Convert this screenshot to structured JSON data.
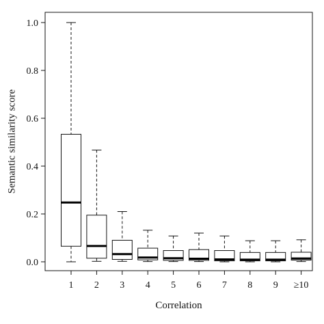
{
  "chart_data": {
    "type": "box",
    "title": "",
    "xlabel": "Correlation",
    "ylabel": "Semantic similarity score",
    "ylim": [
      0,
      1.0
    ],
    "yticks": [
      0.0,
      0.2,
      0.4,
      0.6,
      0.8,
      1.0
    ],
    "ytick_labels": [
      "0.0",
      "0.2",
      "0.4",
      "0.6",
      "0.8",
      "1.0"
    ],
    "grid": false,
    "categories": [
      "1",
      "2",
      "3",
      "4",
      "5",
      "6",
      "7",
      "8",
      "9",
      "≥10"
    ],
    "boxes": [
      {
        "category": "1",
        "whisker_low": 0.0,
        "q1": 0.065,
        "median": 0.248,
        "q3": 0.533,
        "whisker_high": 1.0
      },
      {
        "category": "2",
        "whisker_low": 0.002,
        "q1": 0.015,
        "median": 0.066,
        "q3": 0.195,
        "whisker_high": 0.467
      },
      {
        "category": "3",
        "whisker_low": 0.002,
        "q1": 0.01,
        "median": 0.032,
        "q3": 0.09,
        "whisker_high": 0.21
      },
      {
        "category": "4",
        "whisker_low": 0.001,
        "q1": 0.008,
        "median": 0.018,
        "q3": 0.057,
        "whisker_high": 0.132
      },
      {
        "category": "5",
        "whisker_low": 0.001,
        "q1": 0.006,
        "median": 0.015,
        "q3": 0.047,
        "whisker_high": 0.108
      },
      {
        "category": "6",
        "whisker_low": 0.001,
        "q1": 0.006,
        "median": 0.013,
        "q3": 0.051,
        "whisker_high": 0.12
      },
      {
        "category": "7",
        "whisker_low": 0.0,
        "q1": 0.004,
        "median": 0.01,
        "q3": 0.047,
        "whisker_high": 0.108
      },
      {
        "category": "8",
        "whisker_low": 0.0,
        "q1": 0.004,
        "median": 0.009,
        "q3": 0.039,
        "whisker_high": 0.088
      },
      {
        "category": "9",
        "whisker_low": 0.0,
        "q1": 0.004,
        "median": 0.009,
        "q3": 0.039,
        "whisker_high": 0.088
      },
      {
        "category": "≥10",
        "whisker_low": 0.001,
        "q1": 0.007,
        "median": 0.014,
        "q3": 0.04,
        "whisker_high": 0.092
      }
    ],
    "colors": {
      "box_fill": "#ffffff",
      "stroke": "#111111",
      "median": "#000000"
    }
  }
}
